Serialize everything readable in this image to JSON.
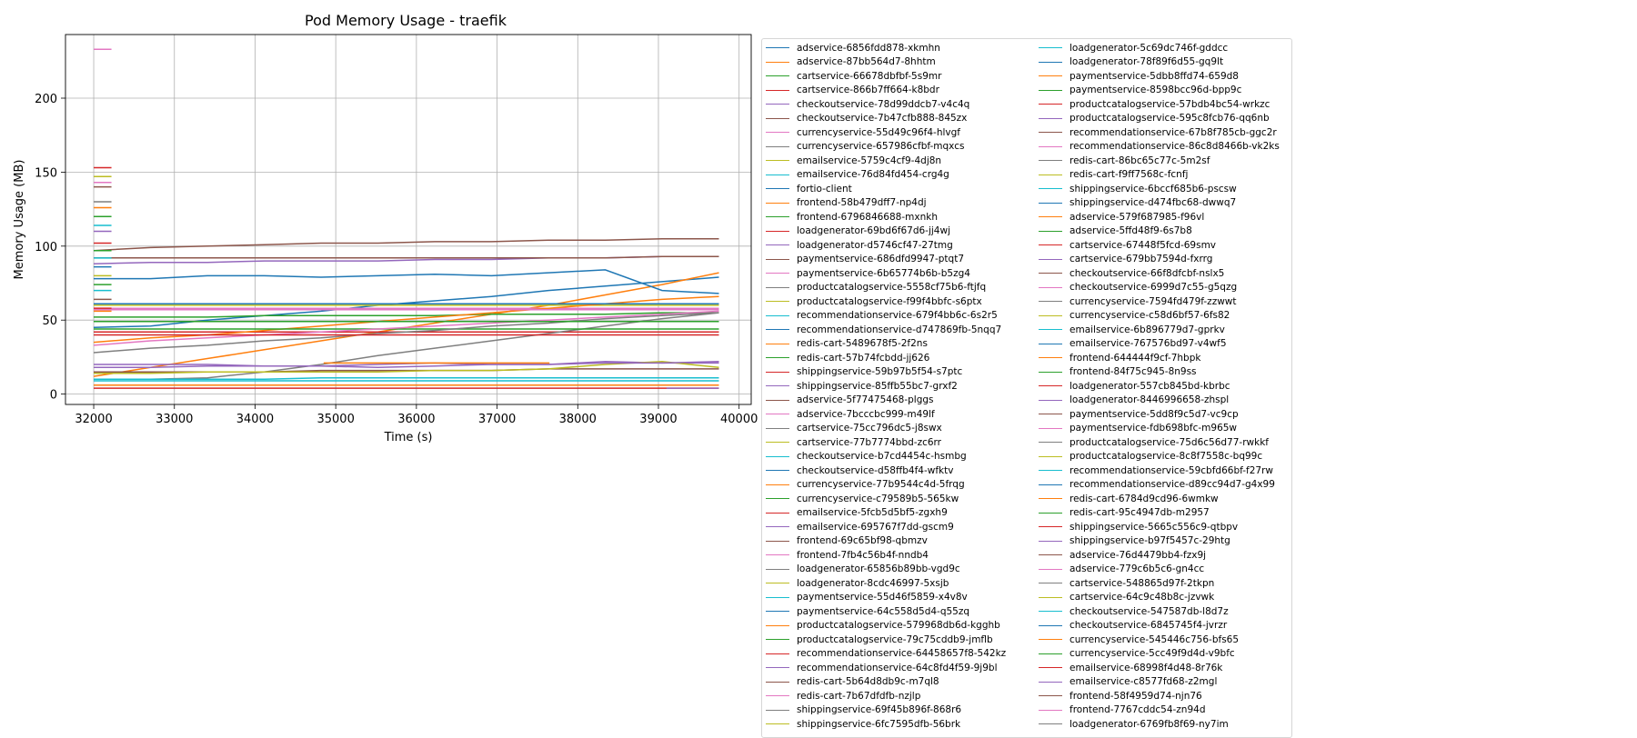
{
  "chart_data": {
    "type": "line",
    "title": "Pod Memory Usage - traefik",
    "xlabel": "Time (s)",
    "ylabel": "Memory Usage (MB)",
    "xlim": [
      31650,
      40150
    ],
    "ylim": [
      -7,
      243
    ],
    "xticks": [
      32000,
      33000,
      34000,
      35000,
      36000,
      37000,
      38000,
      39000,
      40000
    ],
    "yticks": [
      0,
      50,
      100,
      150,
      200
    ],
    "grid": true,
    "legend_placement": "outside-right",
    "palette": [
      "#1f77b4",
      "#ff7f0e",
      "#2ca02c",
      "#d62728",
      "#9467bd",
      "#8c564b",
      "#e377c2",
      "#7f7f7f",
      "#bcbd22",
      "#17becf"
    ],
    "legend": [
      "adservice-6856fdd878-xkmhn",
      "adservice-87bb564d7-8hhtm",
      "cartservice-66678dbfbf-5s9mr",
      "cartservice-866b7ff664-k8bdr",
      "checkoutservice-78d99ddcb7-v4c4q",
      "checkoutservice-7b47cfb888-845zx",
      "currencyservice-55d49c96f4-hlvgf",
      "currencyservice-657986cfbf-mqxcs",
      "emailservice-5759c4cf9-4dj8n",
      "emailservice-76d84fd454-crg4g",
      "fortio-client",
      "frontend-58b479dff7-np4dj",
      "frontend-6796846688-mxnkh",
      "loadgenerator-69bd6f67d6-jj4wj",
      "loadgenerator-d5746cf47-27tmg",
      "paymentservice-686dfd9947-ptqt7",
      "paymentservice-6b65774b6b-b5zg4",
      "productcatalogservice-5558cf75b6-ftjfq",
      "productcatalogservice-f99f4bbfc-s6ptx",
      "recommendationservice-679f4bb6c-6s2r5",
      "recommendationservice-d747869fb-5nqq7",
      "redis-cart-5489678f5-2f2ns",
      "redis-cart-57b74fcbdd-jj626",
      "shippingservice-59b97b5f54-s7ptc",
      "shippingservice-85ffb55bc7-grxf2",
      "adservice-5f77475468-plggs",
      "adservice-7bcccbc999-m49lf",
      "cartservice-75cc796dc5-j8swx",
      "cartservice-77b7774bbd-zc6rr",
      "checkoutservice-b7cd4454c-hsmbg",
      "checkoutservice-d58ffb4f4-wfktv",
      "currencyservice-77b9544c4d-5frqg",
      "currencyservice-c79589b5-565kw",
      "emailservice-5fcb5d5bf5-zgxh9",
      "emailservice-695767f7dd-gscm9",
      "frontend-69c65bf98-qbmzv",
      "frontend-7fb4c56b4f-nndb4",
      "loadgenerator-65856b89bb-vgd9c",
      "loadgenerator-8cdc46997-5xsjb",
      "paymentservice-55d46f5859-x4v8v",
      "paymentservice-64c558d5d4-q55zq",
      "productcatalogservice-579968db6d-kgghb",
      "productcatalogservice-79c75cddb9-jmflb",
      "recommendationservice-64458657f8-542kz",
      "recommendationservice-64c8fd4f59-9j9bl",
      "redis-cart-5b64d8db9c-m7ql8",
      "redis-cart-7b67dfdfb-nzjlp",
      "shippingservice-69f45b896f-868r6",
      "shippingservice-6fc7595dfb-56brk",
      "loadgenerator-5c69dc746f-gddcc",
      "loadgenerator-78f89f6d55-gq9lt",
      "paymentservice-5dbb8ffd74-659d8",
      "paymentservice-8598bcc96d-bpp9c",
      "productcatalogservice-57bdb4bc54-wrkzc",
      "productcatalogservice-595c8fcb76-qq6nb",
      "recommendationservice-67b8f785cb-ggc2r",
      "recommendationservice-86c8d8466b-vk2ks",
      "redis-cart-86bc65c77c-5m2sf",
      "redis-cart-f9ff7568c-fcnfj",
      "shippingservice-6bccf685b6-pscsw",
      "shippingservice-d474fbc68-dwwq7",
      "adservice-579f687985-f96vl",
      "adservice-5ffd48f9-6s7b8",
      "cartservice-67448f5fcd-69smv",
      "cartservice-679bb7594d-fxrrg",
      "checkoutservice-66f8dfcbf-nslx5",
      "checkoutservice-6999d7c55-g5qzg",
      "currencyservice-7594fd479f-zzwwt",
      "currencyservice-c58d6bf57-6fs82",
      "emailservice-6b896779d7-gprkv",
      "emailservice-767576bd97-v4wf5",
      "frontend-644444f9cf-7hbpk",
      "frontend-84f75c945-8n9ss",
      "loadgenerator-557cb845bd-kbrbc",
      "loadgenerator-8446996658-zhspl",
      "paymentservice-5dd8f9c5d7-vc9cp",
      "paymentservice-fdb698bfc-m965w",
      "productcatalogservice-75d6c56d77-rwkkf",
      "productcatalogservice-8c8f7558c-bq99c",
      "recommendationservice-59cbfd66bf-f27rw",
      "recommendationservice-d89cc94d7-g4x99",
      "redis-cart-6784d9cd96-6wmkw",
      "redis-cart-95c4947db-m2957",
      "shippingservice-5665c556c9-qtbpv",
      "shippingservice-b97f5457c-29htg",
      "adservice-76d4479bb4-fzx9j",
      "adservice-779c6b5c6-gn4cc",
      "cartservice-548865d97f-2tkpn",
      "cartservice-64c9c48b8c-jzvwk",
      "checkoutservice-547587db-l8d7z",
      "checkoutservice-6845745f4-jvrzr",
      "currencyservice-545446c756-bfs65",
      "currencyservice-5cc49f9d4d-v9bfc",
      "emailservice-68998f4d48-8r76k",
      "emailservice-c8577fd68-z2mgl",
      "frontend-58f4959d74-njn76",
      "frontend-7767cddc54-zn94d",
      "loadgenerator-6769fb8f69-ny7im"
    ],
    "series": [
      {
        "start": 32000,
        "end": 39750,
        "values": [
          45,
          46,
          50,
          53,
          56,
          60,
          63,
          66,
          70,
          73,
          76,
          79
        ]
      },
      {
        "start": 32000,
        "end": 39750,
        "values": [
          12,
          18,
          24,
          30,
          36,
          42,
          48,
          54,
          60,
          67,
          74,
          82
        ]
      },
      {
        "start": 32000,
        "end": 39750,
        "values": [
          52,
          52,
          52,
          53,
          53,
          53,
          53,
          54,
          54,
          54,
          55,
          55
        ]
      },
      {
        "start": 32000,
        "end": 39750,
        "values": [
          42,
          42,
          42,
          42,
          42,
          42,
          42,
          42,
          42,
          42,
          42,
          42
        ]
      },
      {
        "start": 32000,
        "end": 39750,
        "values": [
          88,
          89,
          89,
          90,
          90,
          90,
          91,
          91,
          92,
          92,
          93,
          93
        ]
      },
      {
        "start": 32000,
        "end": 39750,
        "values": [
          97,
          99,
          100,
          101,
          102,
          102,
          103,
          103,
          104,
          104,
          105,
          105
        ]
      },
      {
        "start": 32000,
        "end": 39750,
        "values": [
          58,
          58,
          58,
          58,
          58,
          58,
          58,
          58,
          58,
          58,
          58,
          58
        ]
      },
      {
        "start": 32000,
        "end": 39750,
        "values": [
          10,
          10,
          11,
          15,
          20,
          26,
          31,
          36,
          41,
          46,
          51,
          55
        ]
      },
      {
        "start": 32000,
        "end": 39750,
        "values": [
          60,
          60,
          60,
          60,
          60,
          60,
          60,
          60,
          60,
          60,
          60,
          60
        ]
      },
      {
        "start": 32000,
        "end": 39750,
        "values": [
          9,
          9,
          9,
          9,
          9,
          9,
          9,
          9,
          9,
          9,
          9,
          9
        ]
      },
      {
        "start": 32000,
        "end": 39750,
        "values": [
          78,
          78,
          80,
          80,
          79,
          80,
          81,
          80,
          82,
          84,
          70,
          68
        ]
      },
      {
        "start": 32000,
        "end": 39750,
        "values": [
          35,
          38,
          40,
          43,
          46,
          49,
          52,
          55,
          58,
          61,
          64,
          66
        ]
      },
      {
        "start": 32000,
        "end": 39750,
        "values": [
          44,
          44,
          44,
          44,
          44,
          44,
          44,
          44,
          44,
          44,
          44,
          44
        ]
      },
      {
        "start": 32000,
        "end": 39750,
        "values": [
          4,
          4,
          4,
          4,
          4,
          4,
          4,
          4,
          4,
          4,
          4,
          4
        ]
      },
      {
        "start": 32000,
        "end": 39750,
        "values": [
          20,
          20,
          20,
          19,
          19,
          20,
          21,
          20,
          20,
          22,
          21,
          21
        ]
      },
      {
        "start": 32000,
        "end": 39750,
        "values": [
          15,
          15,
          15,
          15,
          16,
          16,
          16,
          16,
          17,
          17,
          17,
          17
        ]
      },
      {
        "start": 32000,
        "end": 39750,
        "values": [
          33,
          36,
          38,
          40,
          42,
          44,
          46,
          48,
          50,
          52,
          54,
          56
        ]
      },
      {
        "start": 32000,
        "end": 39750,
        "values": [
          28,
          31,
          33,
          36,
          38,
          41,
          43,
          46,
          48,
          51,
          53,
          55
        ]
      },
      {
        "start": 32000,
        "end": 39750,
        "values": [
          14,
          14,
          15,
          15,
          15,
          15,
          16,
          16,
          17,
          20,
          22,
          18
        ]
      },
      {
        "start": 32000,
        "end": 39750,
        "values": [
          10,
          10,
          10,
          10,
          11,
          11,
          11,
          11,
          11,
          11,
          11,
          11
        ]
      },
      {
        "start": 32000,
        "end": 39750,
        "values": [
          61,
          61,
          61,
          61,
          61,
          61,
          61,
          61,
          61,
          61,
          61,
          61
        ]
      },
      {
        "start": 32000,
        "end": 39750,
        "values": [
          6,
          6,
          6,
          6,
          6,
          6,
          6,
          6,
          6,
          6,
          6,
          6
        ]
      },
      {
        "start": 32000,
        "end": 39750,
        "values": [
          49,
          49,
          49,
          49,
          49,
          49,
          49,
          49,
          49,
          49,
          49,
          49
        ]
      },
      {
        "start": 32000,
        "end": 39750,
        "values": [
          40,
          40,
          40,
          40,
          40,
          40,
          40,
          40,
          40,
          40,
          40,
          40
        ]
      },
      {
        "start": 32000,
        "end": 39750,
        "values": [
          18,
          18,
          19,
          19,
          19,
          18,
          19,
          20,
          20,
          21,
          21,
          22
        ]
      },
      {
        "start": 32000,
        "end": 39750,
        "values": [
          92,
          92,
          92,
          92,
          92,
          92,
          92,
          92,
          92,
          92,
          93,
          93
        ]
      },
      {
        "start": 32000,
        "end": 39750,
        "values": [
          57,
          57,
          57,
          57,
          57,
          57,
          57,
          57,
          57,
          57,
          57,
          57
        ]
      }
    ],
    "spikes": [
      {
        "series": 6,
        "x0": 32000,
        "x1": 32220,
        "y": 233
      },
      {
        "series": 3,
        "x0": 32000,
        "x1": 32220,
        "y": 153
      },
      {
        "series": 8,
        "x0": 32000,
        "x1": 32220,
        "y": 147
      },
      {
        "series": 6,
        "x0": 32000,
        "x1": 32220,
        "y": 143
      },
      {
        "series": 5,
        "x0": 32000,
        "x1": 32220,
        "y": 140
      },
      {
        "series": 7,
        "x0": 32000,
        "x1": 32220,
        "y": 130
      },
      {
        "series": 1,
        "x0": 32000,
        "x1": 32220,
        "y": 126
      },
      {
        "series": 2,
        "x0": 32000,
        "x1": 32220,
        "y": 120
      },
      {
        "series": 9,
        "x0": 32000,
        "x1": 32220,
        "y": 114
      },
      {
        "series": 4,
        "x0": 32000,
        "x1": 32220,
        "y": 110
      },
      {
        "series": 3,
        "x0": 32000,
        "x1": 32220,
        "y": 102
      },
      {
        "series": 2,
        "x0": 32000,
        "x1": 32220,
        "y": 97
      },
      {
        "series": 9,
        "x0": 32000,
        "x1": 32220,
        "y": 92
      },
      {
        "series": 0,
        "x0": 32000,
        "x1": 32220,
        "y": 86
      },
      {
        "series": 8,
        "x0": 32000,
        "x1": 32220,
        "y": 80
      },
      {
        "series": 2,
        "x0": 32000,
        "x1": 32220,
        "y": 74
      },
      {
        "series": 9,
        "x0": 32000,
        "x1": 32220,
        "y": 70
      },
      {
        "series": 5,
        "x0": 32000,
        "x1": 32220,
        "y": 64
      },
      {
        "series": 1,
        "x0": 32000,
        "x1": 32220,
        "y": 56
      },
      {
        "series": 3,
        "x0": 32000,
        "x1": 32220,
        "y": 58
      },
      {
        "series": 4,
        "x0": 39100,
        "x1": 39750,
        "y": 4
      },
      {
        "series": 1,
        "x0": 34850,
        "x1": 37650,
        "y": 21
      }
    ]
  }
}
